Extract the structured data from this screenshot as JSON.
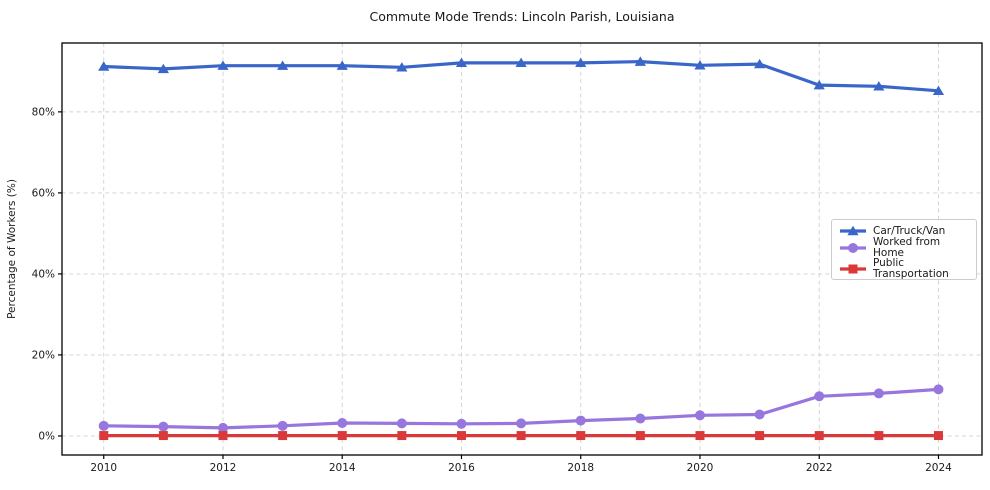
{
  "chart_data": {
    "type": "line",
    "title": "Commute Mode Trends: Lincoln Parish, Louisiana",
    "ylabel": "Percentage of Workers (%)",
    "xlabel": "",
    "x": [
      2010,
      2011,
      2012,
      2013,
      2014,
      2015,
      2016,
      2017,
      2018,
      2019,
      2020,
      2021,
      2022,
      2023,
      2024
    ],
    "series": [
      {
        "name": "Car/Truck/Van",
        "color": "#3966c8",
        "marker": "triangle",
        "values": [
          91.2,
          90.6,
          91.4,
          91.4,
          91.4,
          91.0,
          92.1,
          92.1,
          92.1,
          92.4,
          91.5,
          91.8,
          86.6,
          86.3,
          85.2
        ]
      },
      {
        "name": "Worked from Home",
        "color": "#9777de",
        "marker": "circle",
        "values": [
          2.5,
          2.3,
          2.0,
          2.5,
          3.2,
          3.1,
          3.0,
          3.1,
          3.8,
          4.3,
          5.1,
          5.3,
          9.8,
          10.5,
          11.5
        ]
      },
      {
        "name": "Public Transportation",
        "color": "#db3939",
        "marker": "square",
        "values": [
          0.1,
          0.1,
          0.1,
          0.1,
          0.1,
          0.1,
          0.1,
          0.1,
          0.1,
          0.1,
          0.1,
          0.1,
          0.1,
          0.1,
          0.1
        ]
      }
    ],
    "xticks": [
      2010,
      2012,
      2014,
      2016,
      2018,
      2020,
      2022,
      2024
    ],
    "yticks": [
      0,
      20,
      40,
      60,
      80
    ],
    "ytick_labels": [
      "0%",
      "20%",
      "40%",
      "60%",
      "80%"
    ],
    "xtick_labels": [
      "2010",
      "2012",
      "2014",
      "2016",
      "2018",
      "2020",
      "2022",
      "2024"
    ],
    "xlim": [
      2009.3,
      2024.73
    ],
    "ylim": [
      -4.7,
      97.0
    ],
    "grid": true,
    "grid_color": "#d0d0d0",
    "spine_color": "#000000",
    "legend_position": "center right"
  }
}
